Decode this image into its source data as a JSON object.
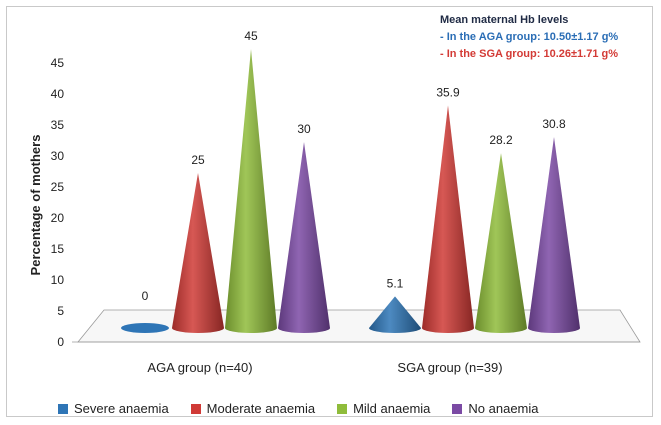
{
  "chart_data": {
    "type": "bar",
    "categories": [
      "AGA group (n=40)",
      "SGA group (n=39)"
    ],
    "series": [
      {
        "name": "Severe anaemia",
        "values": [
          0,
          5.1
        ],
        "color": "#2e75b6"
      },
      {
        "name": "Moderate anaemia",
        "values": [
          25,
          35.9
        ],
        "color": "#d03a36"
      },
      {
        "name": "Mild anaemia",
        "values": [
          45,
          28.2
        ],
        "color": "#8fbc3b"
      },
      {
        "name": "No anaemia",
        "values": [
          30,
          30.8
        ],
        "color": "#7b4aa4"
      }
    ],
    "data_labels": [
      [
        "0",
        "25",
        "45",
        "30"
      ],
      [
        "5.1",
        "35.9",
        "28.2",
        "30.8"
      ]
    ],
    "title": "",
    "xlabel": "",
    "ylabel": "Percentage of mothers",
    "ylim": [
      0,
      45
    ],
    "yticks": [
      "0",
      "5",
      "10",
      "15",
      "20",
      "25",
      "30",
      "35",
      "40",
      "45"
    ],
    "legend_position": "bottom",
    "grid": false,
    "bar_shape": "cone"
  },
  "notes": {
    "title": "Mean maternal Hb levels",
    "aga_line": "- In the AGA group: 10.50±1.17 g%",
    "sga_line": "- In the SGA group: 10.26±1.71 g%"
  }
}
